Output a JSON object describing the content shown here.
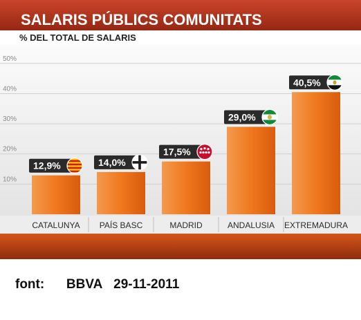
{
  "header": {
    "title": "SALARIS PÚBLICS COMUNITATS",
    "subtitle": "% DEL TOTAL DE SALARIS"
  },
  "colors": {
    "header_red": "#b5321a",
    "bar_orange": "#f0781e",
    "plot_background": "#f1f1f1",
    "label_box": "#2a2a2a",
    "footer_band": "#c44a14"
  },
  "chart_data": {
    "type": "bar",
    "title": "SALARIS PÚBLICS COMUNITATS",
    "subtitle": "% DEL TOTAL DE SALARIS",
    "categories": [
      "CATALUNYA",
      "PAÍS BASC",
      "MADRID",
      "ANDALUSIA",
      "EXTREMADURA"
    ],
    "values": [
      12.9,
      14.0,
      17.5,
      29.0,
      40.5
    ],
    "data_labels": [
      "12,9%",
      "14,0%",
      "17,5%",
      "29,0%",
      "40,5%"
    ],
    "flag_icons": [
      "catalonia-flag-icon",
      "basque-flag-icon",
      "madrid-flag-icon",
      "andalusia-flag-icon",
      "extremadura-flag-icon"
    ],
    "y_ticks": [
      10,
      20,
      30,
      40,
      50
    ],
    "y_tick_labels": [
      "10%",
      "20%",
      "30%",
      "40%",
      "50%"
    ],
    "ylim": [
      0,
      55
    ],
    "grid": true,
    "legend": "none"
  },
  "source": {
    "label": "font:",
    "publisher": "BBVA",
    "date": "29-11-2011"
  }
}
